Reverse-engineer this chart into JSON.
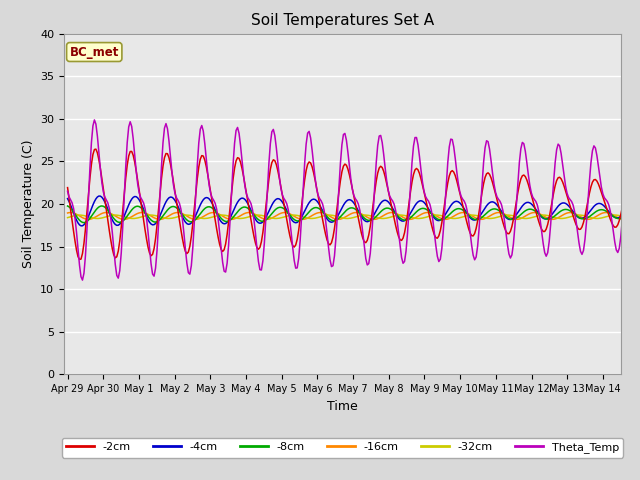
{
  "title": "Soil Temperatures Set A",
  "xlabel": "Time",
  "ylabel": "Soil Temperature (C)",
  "ylim": [
    0,
    40
  ],
  "annotation": "BC_met",
  "background_color": "#e0e0e0",
  "plot_bg_color": "#e8e8e8",
  "series_colors": {
    "-2cm": "#dd0000",
    "-4cm": "#0000cc",
    "-8cm": "#00aa00",
    "-16cm": "#ff8800",
    "-32cm": "#cccc00",
    "Theta_Temp": "#bb00bb"
  },
  "tick_labels": [
    "Apr 29",
    "Apr 30",
    "May 1",
    "May 2",
    "May 3",
    "May 4",
    "May 5",
    "May 6",
    "May 7",
    "May 8",
    "May 9",
    "May 10",
    "May 11",
    "May 12",
    "May 13",
    "May 14"
  ],
  "yticks": [
    0,
    5,
    10,
    15,
    20,
    25,
    30,
    35,
    40
  ],
  "grid_color": "#ffffff",
  "legend_labels": [
    "-2cm",
    "-4cm",
    "-8cm",
    "-16cm",
    "-32cm",
    "Theta_Temp"
  ]
}
